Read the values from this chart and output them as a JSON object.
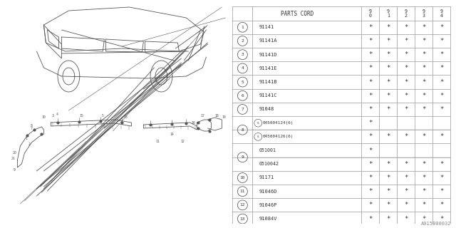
{
  "diagram_code": "A915B00032",
  "bg_color": "#ffffff",
  "header_cols": [
    "PARTS CORD",
    "9\n0",
    "9\n1",
    "9\n2",
    "9\n3",
    "9\n4"
  ],
  "rows": [
    {
      "num": "1",
      "part": "91141",
      "marks": [
        true,
        true,
        true,
        true,
        true
      ],
      "paired": false
    },
    {
      "num": "2",
      "part": "91141A",
      "marks": [
        true,
        true,
        true,
        true,
        true
      ],
      "paired": false
    },
    {
      "num": "3",
      "part": "91141D",
      "marks": [
        true,
        true,
        true,
        true,
        true
      ],
      "paired": false
    },
    {
      "num": "4",
      "part": "91141E",
      "marks": [
        true,
        true,
        true,
        true,
        true
      ],
      "paired": false
    },
    {
      "num": "5",
      "part": "91141B",
      "marks": [
        true,
        true,
        true,
        true,
        true
      ],
      "paired": false
    },
    {
      "num": "6",
      "part": "91141C",
      "marks": [
        true,
        true,
        true,
        true,
        true
      ],
      "paired": false
    },
    {
      "num": "7",
      "part": "91048",
      "marks": [
        true,
        true,
        true,
        true,
        true
      ],
      "paired": false
    },
    {
      "num": "8",
      "part_a": "045004124(6)",
      "marks_a": [
        true,
        false,
        false,
        false,
        false
      ],
      "part_b": "045004126(6)",
      "marks_b": [
        true,
        true,
        true,
        true,
        true
      ],
      "special": true,
      "paired": true
    },
    {
      "num": "9",
      "part_a": "051001",
      "marks_a": [
        true,
        false,
        false,
        false,
        false
      ],
      "part_b": "0510042",
      "marks_b": [
        true,
        true,
        true,
        true,
        true
      ],
      "special": false,
      "paired": true
    },
    {
      "num": "10",
      "part": "91171",
      "marks": [
        true,
        true,
        true,
        true,
        true
      ],
      "paired": false
    },
    {
      "num": "11",
      "part": "91046D",
      "marks": [
        true,
        true,
        true,
        true,
        true
      ],
      "paired": false
    },
    {
      "num": "12",
      "part": "91046P",
      "marks": [
        true,
        true,
        true,
        true,
        true
      ],
      "paired": false
    },
    {
      "num": "13",
      "part": "91084V",
      "marks": [
        true,
        true,
        true,
        true,
        true
      ],
      "paired": false
    }
  ],
  "line_color": "#999999",
  "text_color": "#333333"
}
